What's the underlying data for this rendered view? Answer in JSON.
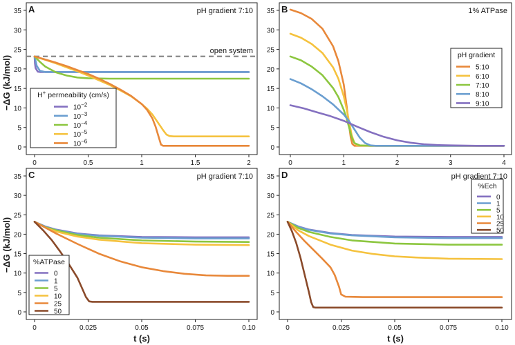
{
  "shared": {
    "ylabel": "−ΔG (kJ/mol)",
    "xlabel": "t (s)",
    "yticks": [
      0,
      5,
      10,
      15,
      20,
      25,
      30,
      35
    ],
    "ylim": [
      0,
      35
    ]
  },
  "chart_data": [
    {
      "panel": "A",
      "type": "line",
      "title": "pH gradient 7:10",
      "xlim": [
        0,
        2
      ],
      "xticks": [
        0,
        0.5,
        1,
        1.5,
        2
      ],
      "xtick_labels": [
        "0",
        "0.5",
        "1",
        "1.5",
        "2"
      ],
      "reference_line": {
        "label": "open system",
        "y": 23.2,
        "color": "#888888"
      },
      "legend": {
        "title": "H⁺ permeability (cm/s)",
        "position": "bottom-left"
      },
      "series": [
        {
          "name": "10⁻²",
          "color": "#8470c0",
          "x": [
            0,
            0.003,
            0.01,
            0.03,
            0.05,
            0.1,
            0.2,
            0.5,
            1,
            1.5,
            2
          ],
          "y": [
            23.2,
            21.5,
            20.2,
            19.3,
            19.2,
            19.2,
            19.2,
            19.2,
            19.2,
            19.2,
            19.2
          ]
        },
        {
          "name": "10⁻³",
          "color": "#6a9ed0",
          "x": [
            0,
            0.02,
            0.05,
            0.1,
            0.2,
            0.5,
            1,
            1.5,
            2
          ],
          "y": [
            23.2,
            20.8,
            19.5,
            19.2,
            19.2,
            19.2,
            19.2,
            19.2,
            19.2
          ]
        },
        {
          "name": "10⁻⁴",
          "color": "#8cc63f",
          "x": [
            0,
            0.05,
            0.1,
            0.2,
            0.3,
            0.4,
            0.5,
            0.7,
            1,
            1.5,
            2
          ],
          "y": [
            23.2,
            21.8,
            20.6,
            19.1,
            18.3,
            17.8,
            17.6,
            17.5,
            17.5,
            17.5,
            17.5
          ]
        },
        {
          "name": "10⁻⁵",
          "color": "#f5c23e",
          "x": [
            0,
            0.1,
            0.2,
            0.3,
            0.4,
            0.5,
            0.6,
            0.7,
            0.8,
            0.9,
            1.0,
            1.05,
            1.1,
            1.15,
            1.2,
            1.23,
            1.26,
            1.3,
            1.5,
            2
          ],
          "y": [
            23.2,
            22.3,
            21.4,
            20.4,
            19.4,
            18.3,
            17.1,
            15.9,
            14.5,
            13.0,
            11.0,
            9.8,
            8.3,
            6.3,
            4.3,
            3.2,
            2.8,
            2.7,
            2.7,
            2.7
          ]
        },
        {
          "name": "10⁻⁶",
          "color": "#e8883a",
          "x": [
            0,
            0.1,
            0.2,
            0.3,
            0.4,
            0.5,
            0.6,
            0.7,
            0.8,
            0.9,
            1.0,
            1.05,
            1.1,
            1.13,
            1.16,
            1.18,
            1.2,
            1.5,
            2
          ],
          "y": [
            23.2,
            22.4,
            21.6,
            20.7,
            19.7,
            18.7,
            17.5,
            16.2,
            14.7,
            13.1,
            11.0,
            9.5,
            7.3,
            5.2,
            2.4,
            0.6,
            0.3,
            0.3,
            0.3
          ]
        }
      ]
    },
    {
      "panel": "B",
      "type": "line",
      "title": "1% ATPase",
      "xlim": [
        0,
        4
      ],
      "xticks": [
        0,
        1,
        2,
        3,
        4
      ],
      "xtick_labels": [
        "0",
        "1",
        "2",
        "3",
        "4"
      ],
      "legend": {
        "title": "pH gradient",
        "position": "center-right"
      },
      "series": [
        {
          "name": "5:10",
          "color": "#e8883a",
          "x": [
            0,
            0.2,
            0.4,
            0.6,
            0.8,
            0.9,
            1.0,
            1.05,
            1.1,
            1.13,
            1.16,
            1.2,
            1.5,
            2,
            3,
            4
          ],
          "y": [
            35.2,
            34.3,
            32.8,
            30.3,
            25.8,
            22.0,
            16.0,
            11.0,
            5.5,
            2.5,
            0.8,
            0.3,
            0.3,
            0.3,
            0.3,
            0.3
          ]
        },
        {
          "name": "6:10",
          "color": "#f5c23e",
          "x": [
            0,
            0.2,
            0.4,
            0.6,
            0.8,
            0.9,
            1.0,
            1.05,
            1.1,
            1.15,
            1.2,
            1.25,
            1.5,
            2,
            3,
            4
          ],
          "y": [
            29.0,
            28.0,
            26.4,
            24.1,
            20.4,
            17.5,
            13.0,
            10.0,
            6.5,
            3.0,
            1.0,
            0.4,
            0.3,
            0.3,
            0.3,
            0.3
          ]
        },
        {
          "name": "7:10",
          "color": "#8cc63f",
          "x": [
            0,
            0.2,
            0.4,
            0.6,
            0.8,
            0.9,
            1.0,
            1.05,
            1.1,
            1.15,
            1.2,
            1.3,
            1.5,
            2,
            3,
            4
          ],
          "y": [
            23.2,
            22.2,
            20.6,
            18.4,
            15.1,
            12.8,
            9.5,
            7.5,
            5.0,
            2.5,
            1.0,
            0.4,
            0.3,
            0.3,
            0.3,
            0.3
          ]
        },
        {
          "name": "8:10",
          "color": "#6a9ed0",
          "x": [
            0,
            0.2,
            0.4,
            0.6,
            0.8,
            1.0,
            1.1,
            1.2,
            1.3,
            1.4,
            1.5,
            1.6,
            2,
            3,
            4
          ],
          "y": [
            17.4,
            16.3,
            14.8,
            13.0,
            10.9,
            8.3,
            6.6,
            4.5,
            2.4,
            1.0,
            0.4,
            0.3,
            0.3,
            0.3,
            0.3
          ]
        },
        {
          "name": "9:10",
          "color": "#8470c0",
          "x": [
            0,
            0.25,
            0.5,
            0.75,
            1.0,
            1.25,
            1.5,
            1.75,
            2.0,
            2.25,
            2.5,
            2.75,
            3.0,
            3.5,
            4
          ],
          "y": [
            10.7,
            9.9,
            8.9,
            7.9,
            6.7,
            5.2,
            3.8,
            2.6,
            1.7,
            1.1,
            0.7,
            0.5,
            0.4,
            0.3,
            0.3
          ]
        }
      ]
    },
    {
      "panel": "C",
      "type": "line",
      "title": "pH gradient 7:10",
      "xlim": [
        0,
        0.1
      ],
      "xticks": [
        0,
        0.025,
        0.05,
        0.075,
        0.1
      ],
      "xtick_labels": [
        "0",
        "0.025",
        "0.05",
        "0.075",
        "0.10"
      ],
      "legend": {
        "title": "%ATPase",
        "position": "bottom-left"
      },
      "series": [
        {
          "name": "0",
          "color": "#8470c0",
          "x": [
            0,
            0.005,
            0.01,
            0.02,
            0.03,
            0.05,
            0.075,
            0.1
          ],
          "y": [
            23.2,
            22.0,
            21.2,
            20.2,
            19.7,
            19.3,
            19.2,
            19.2
          ]
        },
        {
          "name": "1",
          "color": "#6a9ed0",
          "x": [
            0,
            0.005,
            0.01,
            0.02,
            0.03,
            0.05,
            0.075,
            0.1
          ],
          "y": [
            23.2,
            21.9,
            21.1,
            20.1,
            19.6,
            19.1,
            18.9,
            18.9
          ]
        },
        {
          "name": "5",
          "color": "#8cc63f",
          "x": [
            0,
            0.005,
            0.01,
            0.02,
            0.03,
            0.05,
            0.075,
            0.1
          ],
          "y": [
            23.2,
            21.8,
            21.0,
            19.8,
            19.1,
            18.4,
            18.1,
            18.0
          ]
        },
        {
          "name": "10",
          "color": "#f5c23e",
          "x": [
            0,
            0.005,
            0.01,
            0.02,
            0.03,
            0.05,
            0.075,
            0.1
          ],
          "y": [
            23.2,
            21.7,
            20.7,
            19.4,
            18.6,
            17.7,
            17.3,
            17.2
          ]
        },
        {
          "name": "25",
          "color": "#e8883a",
          "x": [
            0,
            0.01,
            0.02,
            0.03,
            0.04,
            0.05,
            0.06,
            0.07,
            0.08,
            0.09,
            0.1
          ],
          "y": [
            23.2,
            20.2,
            17.5,
            15.0,
            13.0,
            11.5,
            10.5,
            9.8,
            9.4,
            9.3,
            9.3
          ]
        },
        {
          "name": "50",
          "color": "#8a4a2a",
          "x": [
            0,
            0.004,
            0.008,
            0.012,
            0.016,
            0.02,
            0.022,
            0.024,
            0.0255,
            0.027,
            0.035,
            0.05,
            0.075,
            0.1
          ],
          "y": [
            23.2,
            21.0,
            18.5,
            15.5,
            12.3,
            8.8,
            6.3,
            3.8,
            2.7,
            2.6,
            2.6,
            2.6,
            2.6,
            2.6
          ]
        }
      ]
    },
    {
      "panel": "D",
      "type": "line",
      "title": "pH gradient 7:10",
      "xlim": [
        0,
        0.1
      ],
      "xticks": [
        0,
        0.025,
        0.05,
        0.075,
        0.1
      ],
      "xtick_labels": [
        "0",
        "0.025",
        "0.05",
        "0.075",
        "0.10"
      ],
      "legend": {
        "title": "%Ech",
        "position": "top-right"
      },
      "series": [
        {
          "name": "0",
          "color": "#8470c0",
          "x": [
            0,
            0.005,
            0.01,
            0.02,
            0.03,
            0.05,
            0.075,
            0.1
          ],
          "y": [
            23.2,
            22.0,
            21.2,
            20.3,
            19.8,
            19.4,
            19.3,
            19.3
          ]
        },
        {
          "name": "1",
          "color": "#6a9ed0",
          "x": [
            0,
            0.005,
            0.01,
            0.02,
            0.03,
            0.05,
            0.075,
            0.1
          ],
          "y": [
            23.2,
            21.9,
            21.1,
            20.2,
            19.7,
            19.2,
            19.0,
            19.0
          ]
        },
        {
          "name": "5",
          "color": "#8cc63f",
          "x": [
            0,
            0.005,
            0.01,
            0.02,
            0.03,
            0.05,
            0.075,
            0.1
          ],
          "y": [
            23.2,
            21.6,
            20.6,
            19.3,
            18.4,
            17.6,
            17.3,
            17.3
          ]
        },
        {
          "name": "10",
          "color": "#f5c23e",
          "x": [
            0,
            0.005,
            0.01,
            0.02,
            0.03,
            0.04,
            0.05,
            0.06,
            0.075,
            0.1
          ],
          "y": [
            23.2,
            21.0,
            19.5,
            17.3,
            15.8,
            14.9,
            14.3,
            14.0,
            13.7,
            13.6
          ]
        },
        {
          "name": "25",
          "color": "#e8883a",
          "x": [
            0,
            0.004,
            0.008,
            0.012,
            0.016,
            0.02,
            0.022,
            0.024,
            0.025,
            0.027,
            0.035,
            0.05,
            0.075,
            0.1
          ],
          "y": [
            23.2,
            20.6,
            18.2,
            16.0,
            13.8,
            11.5,
            9.5,
            6.5,
            4.5,
            3.9,
            3.8,
            3.8,
            3.8,
            3.8
          ]
        },
        {
          "name": "50",
          "color": "#8a4a2a",
          "x": [
            0,
            0.002,
            0.004,
            0.006,
            0.008,
            0.01,
            0.011,
            0.012,
            0.013,
            0.02,
            0.05,
            0.075,
            0.1
          ],
          "y": [
            23.2,
            20.8,
            17.8,
            14.0,
            9.5,
            5.0,
            2.5,
            1.2,
            1.1,
            1.1,
            1.1,
            1.1,
            1.1
          ]
        }
      ]
    }
  ]
}
